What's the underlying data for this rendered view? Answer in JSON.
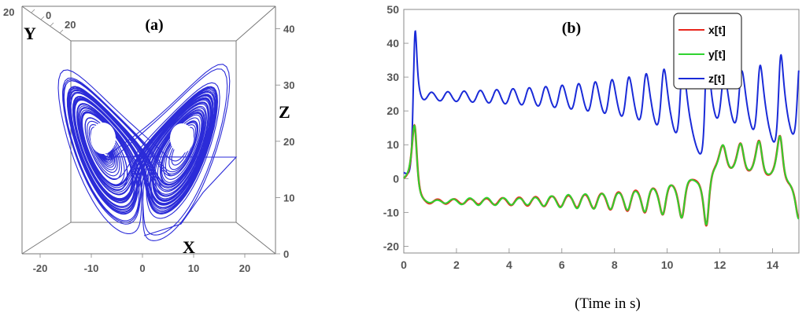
{
  "chart_data": [
    {
      "type": "line",
      "panel_label": "(a)",
      "axis_labels": {
        "x": "X",
        "y": "Y",
        "z": "Z"
      },
      "x_ticks": [
        "-20",
        "-10",
        "0",
        "10",
        "20"
      ],
      "y_ticks": [
        "20",
        "0",
        "20"
      ],
      "z_ticks": [
        "0",
        "10",
        "20",
        "30",
        "40"
      ],
      "xlim": [
        -22,
        26
      ],
      "zlim": [
        0,
        44
      ],
      "series": [
        {
          "color": "#2b2bd8",
          "description_projection": "x-z",
          "start": {
            "x": 2,
            "z": 4
          }
        }
      ]
    },
    {
      "type": "line",
      "panel_label": "(b)",
      "xlabel": "(Time in s)",
      "x_ticks": [
        "0",
        "2",
        "4",
        "6",
        "8",
        "10",
        "12",
        "14"
      ],
      "y_ticks": [
        "-20",
        "-10",
        "0",
        "10",
        "20",
        "30",
        "40",
        "50"
      ],
      "xlim": [
        0,
        15
      ],
      "ylim": [
        -22,
        50
      ],
      "grid": false,
      "legend_position": "top-right",
      "series": [
        {
          "name": "x[t]",
          "color": "#e8261c"
        },
        {
          "name": "y[t]",
          "color": "#2fd32f"
        },
        {
          "name": "z[t]",
          "color": "#1a2bd8"
        }
      ]
    }
  ],
  "caption": "(Time in s)"
}
